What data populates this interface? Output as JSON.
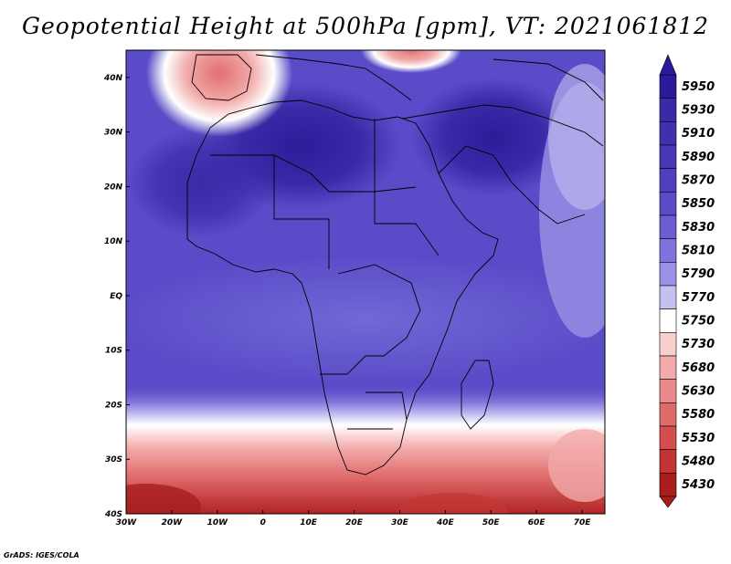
{
  "title": "Geopotential Height at 500hPa [gpm], VT: 2021061812",
  "credit": "GrADS: IGES/COLA",
  "chart_data": {
    "type": "heatmap",
    "variable": "Geopotential Height at 500hPa",
    "units": "gpm",
    "valid_time": "2021061812",
    "xlim": [
      -30,
      75
    ],
    "ylim": [
      -40,
      45
    ],
    "x_ticks": [
      "30W",
      "20W",
      "10W",
      "0",
      "10E",
      "20E",
      "30E",
      "40E",
      "50E",
      "60E",
      "70E"
    ],
    "y_ticks": [
      "40N",
      "30N",
      "20N",
      "10N",
      "EQ",
      "10S",
      "20S",
      "30S",
      "40S"
    ],
    "colorbar": {
      "levels": [
        "5950",
        "5930",
        "5910",
        "5890",
        "5870",
        "5850",
        "5830",
        "5810",
        "5790",
        "5770",
        "5750",
        "5730",
        "5680",
        "5630",
        "5580",
        "5530",
        "5480",
        "5430"
      ],
      "colors": [
        "#2a1a9c",
        "#3a2aa8",
        "#4030b0",
        "#4838b8",
        "#5040c0",
        "#5a4cc8",
        "#6a5ed2",
        "#7c74dc",
        "#9a92e6",
        "#c4c0f0",
        "#ffffff",
        "#f8d0d0",
        "#f2aaaa",
        "#ea8a8a",
        "#e06a6a",
        "#d44e4e",
        "#c43434",
        "#a81e1e"
      ],
      "arrows": "both-ends"
    },
    "grid": false
  }
}
